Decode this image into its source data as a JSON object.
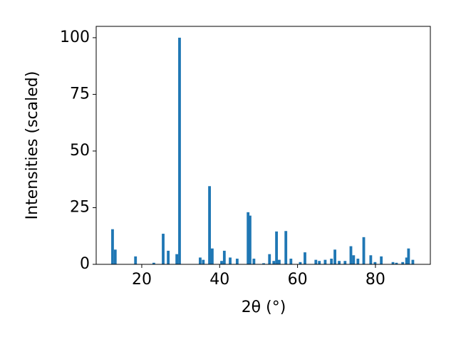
{
  "chart_data": {
    "type": "bar",
    "x_label": "2θ (°)",
    "y_label": "Intensities (scaled)",
    "x": [
      12.5,
      13.2,
      18.4,
      23.1,
      25.5,
      26.8,
      29.0,
      29.7,
      35.0,
      35.8,
      37.4,
      38.1,
      40.5,
      41.2,
      42.7,
      44.5,
      47.3,
      47.8,
      48.8,
      51.3,
      52.8,
      53.9,
      54.6,
      55.3,
      57.0,
      58.3,
      60.7,
      61.9,
      64.7,
      65.6,
      67.1,
      68.7,
      69.6,
      70.7,
      72.2,
      73.7,
      74.4,
      75.5,
      77.0,
      78.8,
      79.9,
      81.5,
      84.5,
      85.4,
      87.0,
      88.0,
      88.5,
      89.6
    ],
    "values": [
      15.5,
      6.5,
      3.5,
      0.7,
      13.5,
      6,
      4.5,
      100,
      3,
      2,
      34.5,
      7,
      1.5,
      6,
      3,
      2.5,
      23,
      21.5,
      2.5,
      0.5,
      4.5,
      1.5,
      14.5,
      2,
      14.7,
      2.5,
      1,
      5.3,
      2,
      1.5,
      2,
      2.5,
      6.5,
      1.5,
      1.5,
      8,
      4,
      2.5,
      12,
      4,
      1,
      3.5,
      1,
      0.7,
      1,
      3,
      7,
      2
    ],
    "color": "#1f77b4",
    "xlim": [
      8.3,
      94.1
    ],
    "xticks": [
      20,
      40,
      60,
      80
    ],
    "ylim": [
      0,
      105
    ],
    "yticks": [
      0,
      25,
      50,
      75,
      100
    ]
  }
}
